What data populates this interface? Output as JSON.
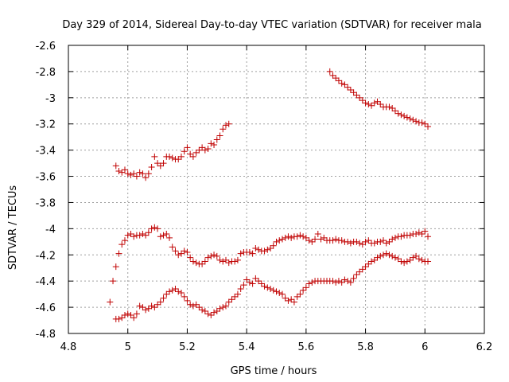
{
  "chart_data": {
    "type": "scatter",
    "title": "Day 329 of 2014, Sidereal Day-to-day VTEC variation (SDTVAR) for receiver mala",
    "xlabel": "GPS time / hours",
    "ylabel": "SDTVAR / TECUs",
    "xlim": [
      4.8,
      6.2
    ],
    "ylim": [
      -4.8,
      -2.6
    ],
    "xticks": [
      4.8,
      5,
      5.2,
      5.4,
      5.6,
      5.8,
      6,
      6.2
    ],
    "yticks": [
      -4.8,
      -4.6,
      -4.4,
      -4.2,
      -4,
      -3.8,
      -3.6,
      -3.4,
      -3.2,
      -3,
      -2.8,
      -2.6
    ],
    "xtick_labels": [
      "4.8",
      "5",
      "5.2",
      "5.4",
      "5.6",
      "5.8",
      "6",
      "6.2"
    ],
    "ytick_labels": [
      "-4.8",
      "-4.6",
      "-4.4",
      "-4.2",
      "-4",
      "-3.8",
      "-3.6",
      "-3.4",
      "-3.2",
      "-3",
      "-2.8",
      "-2.6"
    ],
    "grid": true,
    "marker": "+",
    "color": "#c00000",
    "series": [
      {
        "name": "upper-left arc",
        "x": [
          4.96,
          4.97,
          4.98,
          4.99,
          5.0,
          5.01,
          5.02,
          5.03,
          5.04,
          5.05,
          5.06,
          5.07,
          5.08,
          5.09,
          5.1,
          5.11,
          5.12,
          5.13,
          5.14,
          5.15,
          5.16,
          5.17,
          5.18,
          5.19,
          5.2,
          5.21,
          5.22,
          5.23,
          5.24,
          5.25,
          5.26,
          5.27,
          5.28,
          5.29,
          5.3,
          5.31,
          5.32,
          5.33,
          5.34
        ],
        "y": [
          -3.52,
          -3.56,
          -3.57,
          -3.55,
          -3.58,
          -3.59,
          -3.58,
          -3.6,
          -3.57,
          -3.58,
          -3.61,
          -3.58,
          -3.53,
          -3.45,
          -3.5,
          -3.52,
          -3.5,
          -3.45,
          -3.45,
          -3.46,
          -3.47,
          -3.47,
          -3.45,
          -3.41,
          -3.38,
          -3.43,
          -3.45,
          -3.42,
          -3.4,
          -3.38,
          -3.4,
          -3.39,
          -3.35,
          -3.36,
          -3.32,
          -3.29,
          -3.24,
          -3.21,
          -3.2
        ]
      },
      {
        "name": "upper-right arc",
        "x": [
          5.68,
          5.69,
          5.7,
          5.71,
          5.72,
          5.73,
          5.74,
          5.75,
          5.76,
          5.77,
          5.78,
          5.79,
          5.8,
          5.81,
          5.82,
          5.83,
          5.84,
          5.85,
          5.86,
          5.87,
          5.88,
          5.89,
          5.9,
          5.91,
          5.92,
          5.93,
          5.94,
          5.95,
          5.96,
          5.97,
          5.98,
          5.99,
          6.0,
          6.01
        ],
        "y": [
          -2.8,
          -2.83,
          -2.85,
          -2.87,
          -2.89,
          -2.9,
          -2.92,
          -2.94,
          -2.96,
          -2.98,
          -3.0,
          -3.02,
          -3.04,
          -3.05,
          -3.06,
          -3.04,
          -3.03,
          -3.05,
          -3.07,
          -3.07,
          -3.07,
          -3.08,
          -3.1,
          -3.12,
          -3.13,
          -3.14,
          -3.15,
          -3.16,
          -3.17,
          -3.18,
          -3.19,
          -3.19,
          -3.2,
          -3.22
        ]
      },
      {
        "name": "middle arc",
        "x": [
          4.95,
          4.96,
          4.97,
          4.98,
          4.99,
          5.0,
          5.01,
          5.02,
          5.03,
          5.04,
          5.05,
          5.06,
          5.07,
          5.08,
          5.09,
          5.1,
          5.11,
          5.12,
          5.13,
          5.14,
          5.15,
          5.16,
          5.17,
          5.18,
          5.19,
          5.2,
          5.21,
          5.22,
          5.23,
          5.24,
          5.25,
          5.26,
          5.27,
          5.28,
          5.29,
          5.3,
          5.31,
          5.32,
          5.33,
          5.34,
          5.35,
          5.36,
          5.37,
          5.38,
          5.39,
          5.4,
          5.41,
          5.42,
          5.43,
          5.44,
          5.45,
          5.46,
          5.47,
          5.48,
          5.49,
          5.5,
          5.51,
          5.52,
          5.53,
          5.54,
          5.55,
          5.56,
          5.57,
          5.58,
          5.59,
          5.6,
          5.61,
          5.62,
          5.63,
          5.64,
          5.65,
          5.66,
          5.67,
          5.68,
          5.69,
          5.7,
          5.71,
          5.72,
          5.73,
          5.74,
          5.75,
          5.76,
          5.77,
          5.78,
          5.79,
          5.8,
          5.81,
          5.82,
          5.83,
          5.84,
          5.85,
          5.86,
          5.87,
          5.88,
          5.89,
          5.9,
          5.91,
          5.92,
          5.93,
          5.94,
          5.95,
          5.96,
          5.97,
          5.98,
          5.99,
          6.0,
          6.01
        ],
        "y": [
          -4.4,
          -4.29,
          -4.19,
          -4.12,
          -4.09,
          -4.05,
          -4.04,
          -4.06,
          -4.05,
          -4.05,
          -4.04,
          -4.05,
          -4.03,
          -4.0,
          -3.99,
          -4.0,
          -4.06,
          -4.05,
          -4.04,
          -4.07,
          -4.14,
          -4.17,
          -4.2,
          -4.19,
          -4.17,
          -4.18,
          -4.22,
          -4.25,
          -4.26,
          -4.27,
          -4.27,
          -4.25,
          -4.22,
          -4.21,
          -4.2,
          -4.21,
          -4.24,
          -4.25,
          -4.24,
          -4.26,
          -4.25,
          -4.25,
          -4.24,
          -4.19,
          -4.18,
          -4.18,
          -4.18,
          -4.19,
          -4.15,
          -4.16,
          -4.17,
          -4.17,
          -4.16,
          -4.15,
          -4.13,
          -4.1,
          -4.09,
          -4.08,
          -4.07,
          -4.06,
          -4.07,
          -4.06,
          -4.06,
          -4.05,
          -4.06,
          -4.07,
          -4.09,
          -4.1,
          -4.08,
          -4.04,
          -4.08,
          -4.07,
          -4.09,
          -4.09,
          -4.09,
          -4.08,
          -4.09,
          -4.09,
          -4.1,
          -4.1,
          -4.11,
          -4.1,
          -4.1,
          -4.11,
          -4.12,
          -4.1,
          -4.09,
          -4.11,
          -4.11,
          -4.1,
          -4.1,
          -4.09,
          -4.11,
          -4.1,
          -4.08,
          -4.07,
          -4.06,
          -4.06,
          -4.05,
          -4.05,
          -4.05,
          -4.04,
          -4.04,
          -4.03,
          -4.04,
          -4.02,
          -4.06
        ]
      },
      {
        "name": "lower arc",
        "x": [
          4.94,
          4.96,
          4.97,
          4.98,
          4.99,
          5.0,
          5.01,
          5.02,
          5.03,
          5.04,
          5.05,
          5.06,
          5.07,
          5.08,
          5.09,
          5.1,
          5.11,
          5.12,
          5.13,
          5.14,
          5.15,
          5.16,
          5.17,
          5.18,
          5.19,
          5.2,
          5.21,
          5.22,
          5.23,
          5.24,
          5.25,
          5.26,
          5.27,
          5.28,
          5.29,
          5.3,
          5.31,
          5.32,
          5.33,
          5.34,
          5.35,
          5.36,
          5.37,
          5.38,
          5.39,
          5.4,
          5.41,
          5.42,
          5.43,
          5.44,
          5.45,
          5.46,
          5.47,
          5.48,
          5.49,
          5.5,
          5.51,
          5.52,
          5.53,
          5.54,
          5.55,
          5.56,
          5.57,
          5.58,
          5.59,
          5.6,
          5.61,
          5.62,
          5.63,
          5.64,
          5.65,
          5.66,
          5.67,
          5.68,
          5.69,
          5.7,
          5.71,
          5.72,
          5.73,
          5.74,
          5.75,
          5.76,
          5.77,
          5.78,
          5.79,
          5.8,
          5.81,
          5.82,
          5.83,
          5.84,
          5.85,
          5.86,
          5.87,
          5.88,
          5.89,
          5.9,
          5.91,
          5.92,
          5.93,
          5.94,
          5.95,
          5.96,
          5.97,
          5.98,
          5.99,
          6.0,
          6.01
        ],
        "y": [
          -4.56,
          -4.69,
          -4.69,
          -4.68,
          -4.66,
          -4.65,
          -4.66,
          -4.68,
          -4.65,
          -4.59,
          -4.6,
          -4.62,
          -4.61,
          -4.59,
          -4.6,
          -4.58,
          -4.56,
          -4.53,
          -4.5,
          -4.48,
          -4.47,
          -4.46,
          -4.48,
          -4.49,
          -4.52,
          -4.55,
          -4.58,
          -4.59,
          -4.58,
          -4.6,
          -4.62,
          -4.63,
          -4.65,
          -4.66,
          -4.64,
          -4.63,
          -4.61,
          -4.6,
          -4.59,
          -4.56,
          -4.54,
          -4.52,
          -4.5,
          -4.46,
          -4.43,
          -4.39,
          -4.41,
          -4.42,
          -4.38,
          -4.4,
          -4.42,
          -4.44,
          -4.45,
          -4.46,
          -4.47,
          -4.48,
          -4.49,
          -4.5,
          -4.53,
          -4.55,
          -4.54,
          -4.56,
          -4.52,
          -4.5,
          -4.47,
          -4.45,
          -4.42,
          -4.41,
          -4.4,
          -4.4,
          -4.4,
          -4.4,
          -4.4,
          -4.4,
          -4.4,
          -4.41,
          -4.4,
          -4.41,
          -4.39,
          -4.4,
          -4.41,
          -4.38,
          -4.35,
          -4.33,
          -4.31,
          -4.29,
          -4.27,
          -4.25,
          -4.24,
          -4.22,
          -4.21,
          -4.2,
          -4.19,
          -4.2,
          -4.21,
          -4.22,
          -4.23,
          -4.25,
          -4.26,
          -4.25,
          -4.24,
          -4.22,
          -4.21,
          -4.23,
          -4.24,
          -4.25,
          -4.25
        ]
      }
    ]
  }
}
